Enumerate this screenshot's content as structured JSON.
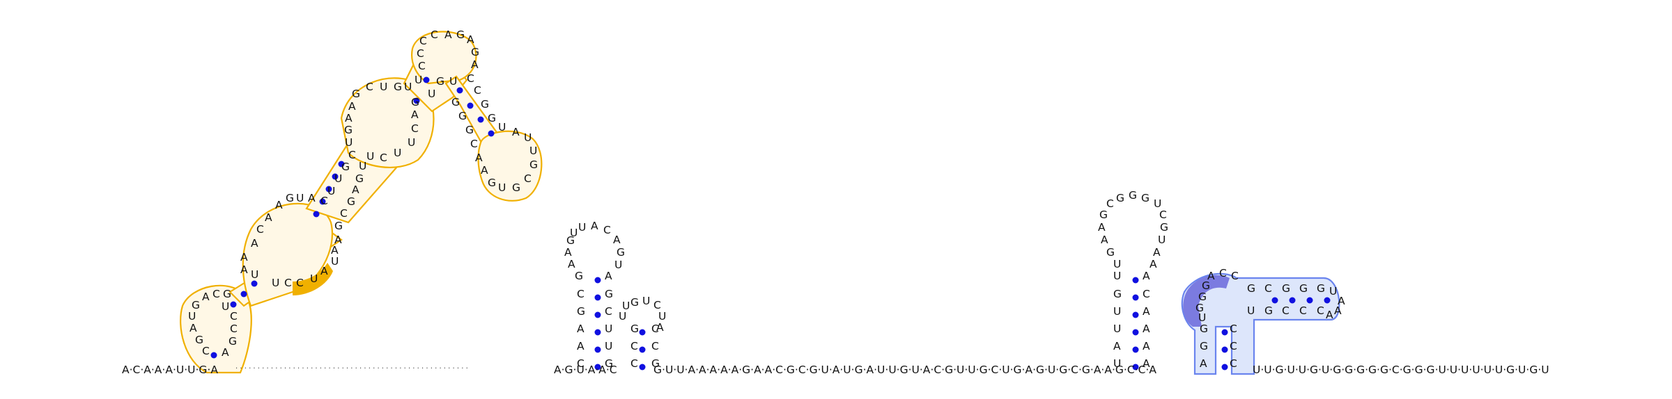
{
  "sequence": "ACAAAUUGA",
  "backbone_middle": "AGUAAC",
  "backbone_right": "GUUAAAAAGAACGCGUAUGAUUGUACGUUGCUGAGUGCGAAGCCA",
  "backbone_tail": "UUGUUGUGGGGGCGGGUUUUUUGUGU",
  "colors": {
    "pair_dot": "#1010e0",
    "orange_outline": "#f0b000",
    "orange_fill": "#fff8e6",
    "orange_mark": "#f0b000",
    "blue_outline": "#6a84ee",
    "blue_fill": "#dde6fb",
    "blue_mark": "#7b7be0"
  }
}
